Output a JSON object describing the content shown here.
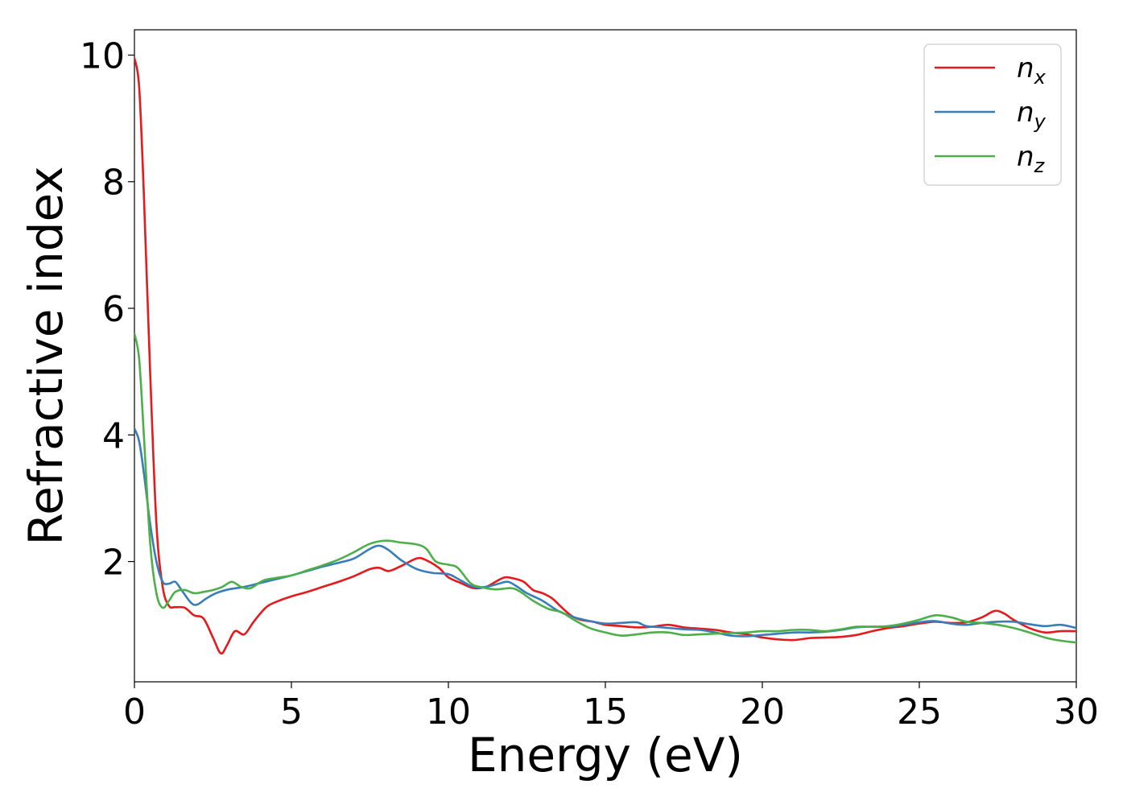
{
  "chart_data": {
    "type": "line",
    "xlabel": "Energy (eV)",
    "ylabel": "Refractive index",
    "xlim": [
      0,
      30
    ],
    "ylim": [
      0.1,
      10.4
    ],
    "xticks": [
      0,
      5,
      10,
      15,
      20,
      25,
      30
    ],
    "yticks": [
      2,
      4,
      6,
      8,
      10
    ],
    "grid": false,
    "legend_position": "top-right",
    "series": [
      {
        "name": "n",
        "sub": "x",
        "color": "#e41a1c",
        "points": [
          [
            0,
            9.95
          ],
          [
            0.15,
            9.5
          ],
          [
            0.3,
            7.8
          ],
          [
            0.5,
            5.0
          ],
          [
            0.7,
            2.6
          ],
          [
            0.9,
            1.6
          ],
          [
            1.1,
            1.3
          ],
          [
            1.3,
            1.28
          ],
          [
            1.6,
            1.27
          ],
          [
            1.9,
            1.15
          ],
          [
            2.2,
            1.1
          ],
          [
            2.5,
            0.8
          ],
          [
            2.75,
            0.55
          ],
          [
            2.95,
            0.68
          ],
          [
            3.2,
            0.9
          ],
          [
            3.5,
            0.85
          ],
          [
            3.8,
            1.05
          ],
          [
            4.2,
            1.28
          ],
          [
            4.6,
            1.38
          ],
          [
            5,
            1.45
          ],
          [
            5.5,
            1.52
          ],
          [
            6,
            1.6
          ],
          [
            6.5,
            1.68
          ],
          [
            7,
            1.77
          ],
          [
            7.5,
            1.88
          ],
          [
            7.8,
            1.9
          ],
          [
            8.1,
            1.85
          ],
          [
            8.5,
            1.93
          ],
          [
            9,
            2.05
          ],
          [
            9.3,
            2.02
          ],
          [
            9.7,
            1.9
          ],
          [
            10,
            1.75
          ],
          [
            10.4,
            1.66
          ],
          [
            10.8,
            1.58
          ],
          [
            11.2,
            1.6
          ],
          [
            11.5,
            1.68
          ],
          [
            11.8,
            1.75
          ],
          [
            12.1,
            1.73
          ],
          [
            12.4,
            1.68
          ],
          [
            12.7,
            1.55
          ],
          [
            13,
            1.5
          ],
          [
            13.3,
            1.42
          ],
          [
            13.6,
            1.28
          ],
          [
            13.9,
            1.15
          ],
          [
            14.2,
            1.08
          ],
          [
            14.6,
            1.05
          ],
          [
            15,
            1.0
          ],
          [
            15.5,
            0.98
          ],
          [
            16,
            0.96
          ],
          [
            16.5,
            0.97
          ],
          [
            17,
            1.0
          ],
          [
            17.5,
            0.96
          ],
          [
            18,
            0.94
          ],
          [
            18.5,
            0.92
          ],
          [
            19,
            0.88
          ],
          [
            19.5,
            0.85
          ],
          [
            20,
            0.8
          ],
          [
            20.5,
            0.77
          ],
          [
            21,
            0.76
          ],
          [
            21.5,
            0.79
          ],
          [
            22,
            0.8
          ],
          [
            22.5,
            0.81
          ],
          [
            23,
            0.84
          ],
          [
            23.5,
            0.9
          ],
          [
            24,
            0.95
          ],
          [
            24.5,
            0.98
          ],
          [
            25,
            1.02
          ],
          [
            25.5,
            1.05
          ],
          [
            26,
            1.03
          ],
          [
            26.5,
            1.04
          ],
          [
            27,
            1.12
          ],
          [
            27.4,
            1.22
          ],
          [
            27.7,
            1.18
          ],
          [
            28,
            1.08
          ],
          [
            28.5,
            0.95
          ],
          [
            29,
            0.88
          ],
          [
            29.5,
            0.9
          ],
          [
            30,
            0.9
          ]
        ]
      },
      {
        "name": "n",
        "sub": "y",
        "color": "#377eb8",
        "points": [
          [
            0,
            4.1
          ],
          [
            0.15,
            3.9
          ],
          [
            0.3,
            3.4
          ],
          [
            0.5,
            2.6
          ],
          [
            0.7,
            2.0
          ],
          [
            0.9,
            1.68
          ],
          [
            1.1,
            1.65
          ],
          [
            1.3,
            1.68
          ],
          [
            1.5,
            1.55
          ],
          [
            1.8,
            1.35
          ],
          [
            2.0,
            1.32
          ],
          [
            2.3,
            1.42
          ],
          [
            2.6,
            1.5
          ],
          [
            3.0,
            1.56
          ],
          [
            3.5,
            1.6
          ],
          [
            4,
            1.66
          ],
          [
            4.5,
            1.72
          ],
          [
            5,
            1.78
          ],
          [
            5.5,
            1.85
          ],
          [
            6,
            1.92
          ],
          [
            6.5,
            1.98
          ],
          [
            7,
            2.05
          ],
          [
            7.5,
            2.2
          ],
          [
            7.8,
            2.25
          ],
          [
            8.1,
            2.18
          ],
          [
            8.5,
            2.02
          ],
          [
            9,
            1.88
          ],
          [
            9.5,
            1.82
          ],
          [
            10,
            1.8
          ],
          [
            10.4,
            1.7
          ],
          [
            10.8,
            1.6
          ],
          [
            11.2,
            1.6
          ],
          [
            11.6,
            1.65
          ],
          [
            11.9,
            1.68
          ],
          [
            12.2,
            1.6
          ],
          [
            12.5,
            1.5
          ],
          [
            13,
            1.38
          ],
          [
            13.5,
            1.22
          ],
          [
            14,
            1.12
          ],
          [
            14.5,
            1.06
          ],
          [
            15,
            1.02
          ],
          [
            15.5,
            1.03
          ],
          [
            16,
            1.04
          ],
          [
            16.3,
            0.98
          ],
          [
            16.8,
            0.96
          ],
          [
            17.5,
            0.93
          ],
          [
            18,
            0.92
          ],
          [
            18.5,
            0.88
          ],
          [
            19,
            0.83
          ],
          [
            19.5,
            0.82
          ],
          [
            20,
            0.84
          ],
          [
            20.5,
            0.86
          ],
          [
            21,
            0.88
          ],
          [
            21.5,
            0.88
          ],
          [
            22,
            0.89
          ],
          [
            22.5,
            0.92
          ],
          [
            23,
            0.96
          ],
          [
            23.5,
            0.97
          ],
          [
            24,
            0.97
          ],
          [
            24.5,
            1.0
          ],
          [
            25,
            1.04
          ],
          [
            25.5,
            1.06
          ],
          [
            26,
            1.02
          ],
          [
            26.5,
            1.0
          ],
          [
            27,
            1.03
          ],
          [
            27.5,
            1.05
          ],
          [
            28,
            1.05
          ],
          [
            28.5,
            1.01
          ],
          [
            29,
            0.98
          ],
          [
            29.5,
            1.0
          ],
          [
            30,
            0.95
          ]
        ]
      },
      {
        "name": "n",
        "sub": "z",
        "color": "#4daf4a",
        "points": [
          [
            0,
            5.6
          ],
          [
            0.15,
            5.2
          ],
          [
            0.3,
            4.0
          ],
          [
            0.5,
            2.3
          ],
          [
            0.7,
            1.5
          ],
          [
            0.9,
            1.27
          ],
          [
            1.1,
            1.38
          ],
          [
            1.3,
            1.52
          ],
          [
            1.6,
            1.55
          ],
          [
            1.9,
            1.5
          ],
          [
            2.2,
            1.52
          ],
          [
            2.5,
            1.55
          ],
          [
            2.8,
            1.6
          ],
          [
            3.1,
            1.68
          ],
          [
            3.4,
            1.6
          ],
          [
            3.7,
            1.58
          ],
          [
            4.1,
            1.7
          ],
          [
            4.5,
            1.74
          ],
          [
            5,
            1.78
          ],
          [
            5.5,
            1.86
          ],
          [
            6,
            1.94
          ],
          [
            6.5,
            2.03
          ],
          [
            7,
            2.15
          ],
          [
            7.5,
            2.28
          ],
          [
            8,
            2.33
          ],
          [
            8.5,
            2.3
          ],
          [
            9,
            2.27
          ],
          [
            9.3,
            2.2
          ],
          [
            9.6,
            2.0
          ],
          [
            10,
            1.95
          ],
          [
            10.3,
            1.9
          ],
          [
            10.7,
            1.66
          ],
          [
            11,
            1.6
          ],
          [
            11.5,
            1.56
          ],
          [
            12,
            1.58
          ],
          [
            12.3,
            1.52
          ],
          [
            12.7,
            1.38
          ],
          [
            13.2,
            1.25
          ],
          [
            13.6,
            1.2
          ],
          [
            14,
            1.08
          ],
          [
            14.5,
            0.95
          ],
          [
            15,
            0.88
          ],
          [
            15.5,
            0.83
          ],
          [
            16,
            0.85
          ],
          [
            16.5,
            0.88
          ],
          [
            17,
            0.88
          ],
          [
            17.5,
            0.84
          ],
          [
            18,
            0.85
          ],
          [
            18.5,
            0.86
          ],
          [
            19,
            0.87
          ],
          [
            19.5,
            0.88
          ],
          [
            20,
            0.9
          ],
          [
            20.5,
            0.9
          ],
          [
            21,
            0.92
          ],
          [
            21.5,
            0.92
          ],
          [
            22,
            0.9
          ],
          [
            22.5,
            0.93
          ],
          [
            23,
            0.97
          ],
          [
            23.5,
            0.97
          ],
          [
            24,
            0.98
          ],
          [
            24.5,
            1.02
          ],
          [
            25,
            1.08
          ],
          [
            25.5,
            1.15
          ],
          [
            26,
            1.12
          ],
          [
            26.5,
            1.05
          ],
          [
            27,
            1.03
          ],
          [
            27.5,
            1.0
          ],
          [
            28,
            0.95
          ],
          [
            28.5,
            0.88
          ],
          [
            29,
            0.8
          ],
          [
            29.5,
            0.75
          ],
          [
            30,
            0.72
          ]
        ]
      }
    ]
  }
}
